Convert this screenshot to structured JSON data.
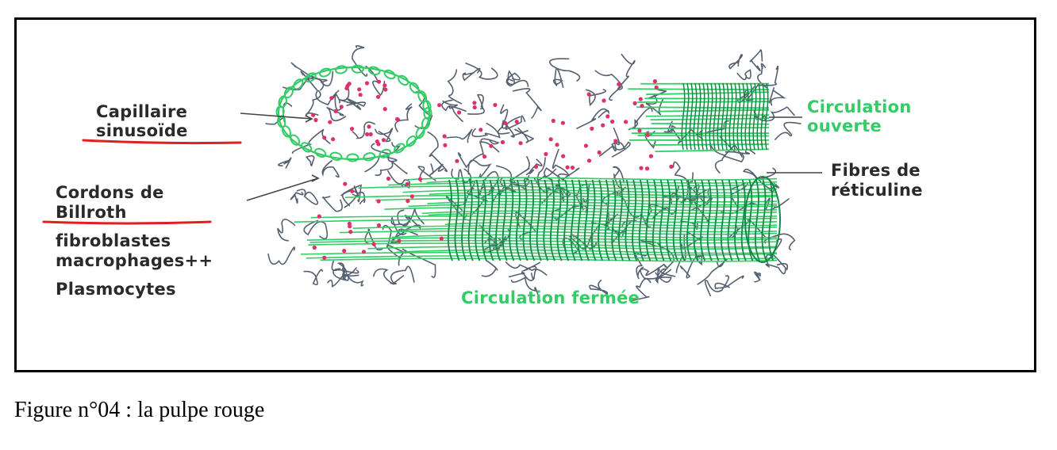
{
  "labels": {
    "capillaire": "Capillaire",
    "sinusoide": "sinusoïde",
    "cordons": "Cordons de",
    "billroth": "Billroth",
    "fibroblastes": "fibroblastes",
    "macrophages": "macrophages++",
    "plasmocytes": "Plasmocytes",
    "circulation_ouverte_1": "Circulation",
    "circulation_ouverte_2": "ouverte",
    "fibres_1": "Fibres de",
    "fibres_2": "réticuline",
    "circulation_fermee": "Circulation fermée"
  },
  "caption": "Figure n°04 : la pulpe rouge",
  "colors": {
    "green": "#33cc66",
    "dark_green": "#118844",
    "fiber_gray": "#556070",
    "cell_red": "#e0306a",
    "underline_red": "#e02020",
    "pointer": "#444444"
  }
}
